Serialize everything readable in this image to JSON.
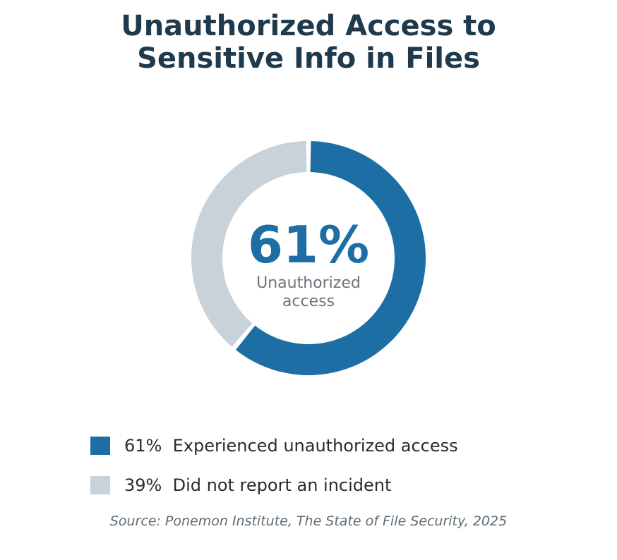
{
  "chart_data": {
    "type": "pie",
    "title_lines": [
      "Unauthorized Access to",
      "Sensitive Info in Files"
    ],
    "center_value": "61%",
    "center_label_lines": [
      "Unauthorized",
      "access"
    ],
    "slices": [
      {
        "value": 61,
        "value_label": "61%",
        "label": "Experienced unauthorized access",
        "color": "#1c6ea4"
      },
      {
        "value": 39,
        "value_label": "39%",
        "label": "Did not report an incident",
        "color": "#c9d2d9"
      }
    ],
    "legend_position": "bottom-left",
    "source": "Source: Ponemon Institute, The State of File Security, 2025"
  }
}
